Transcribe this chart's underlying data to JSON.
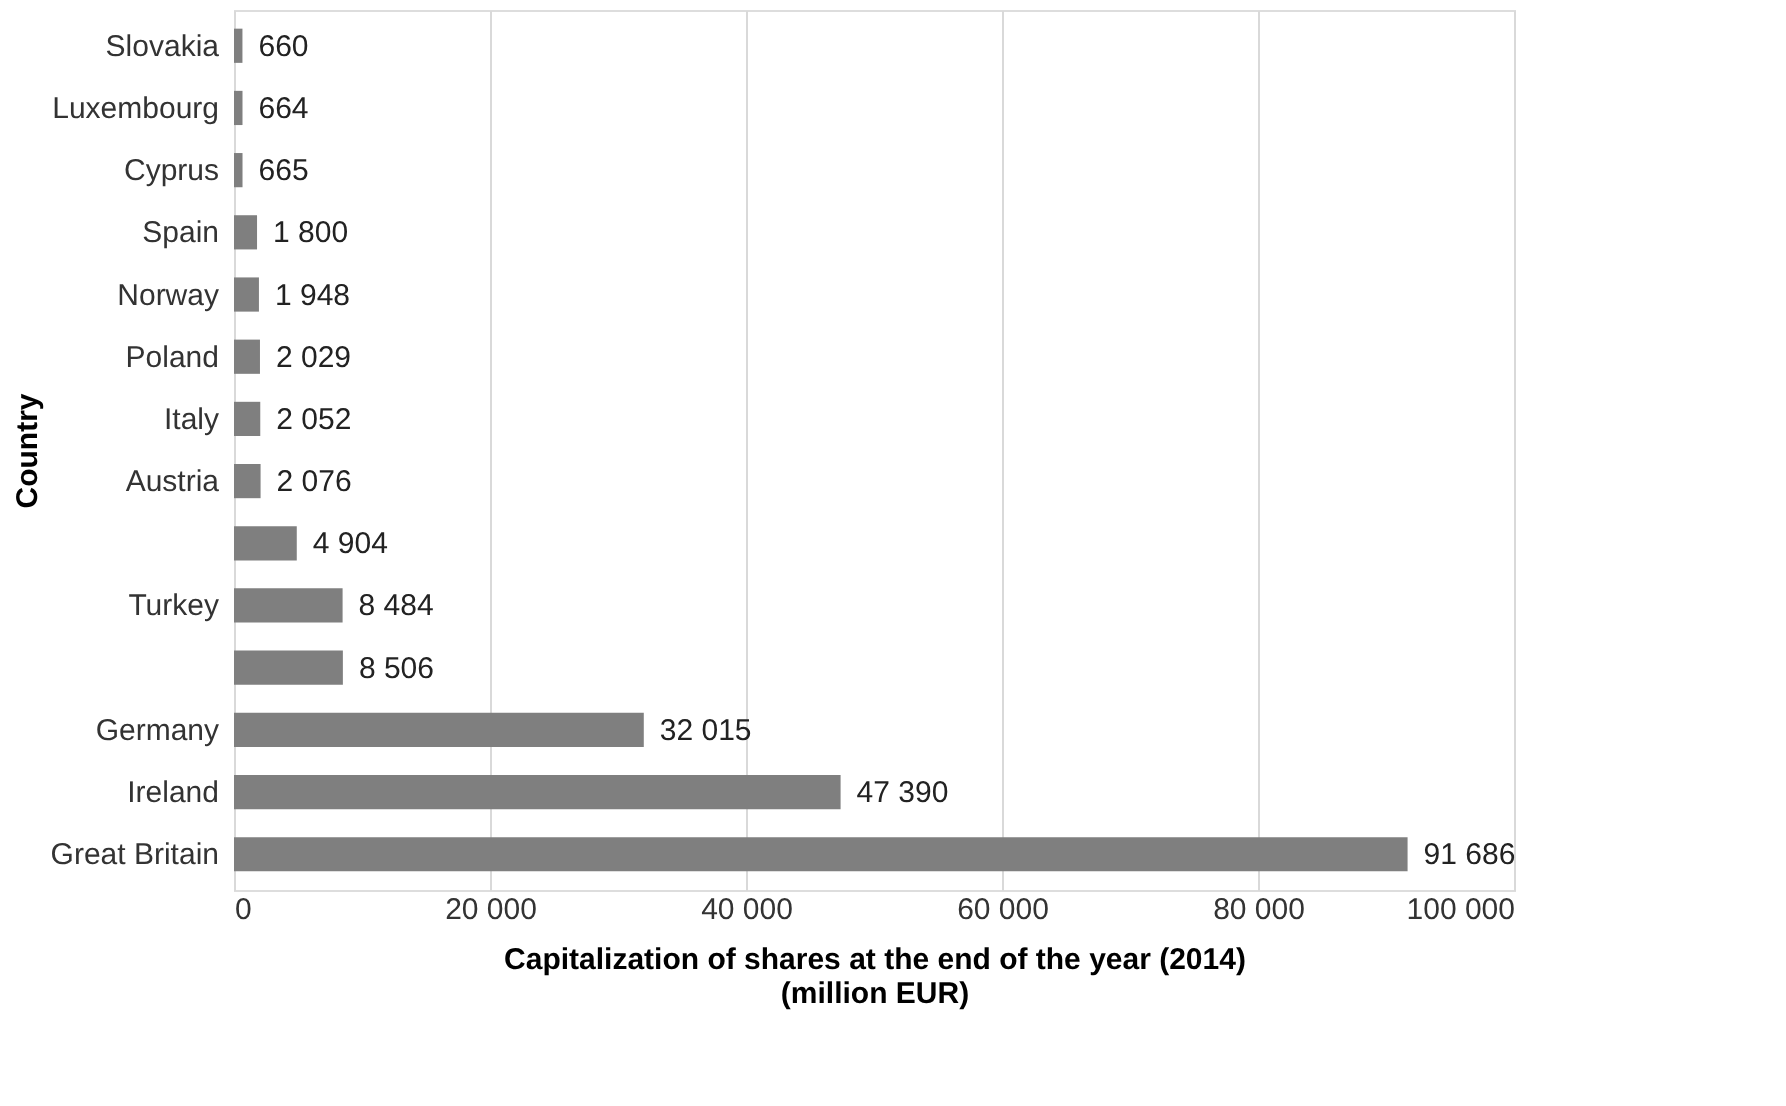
{
  "chart_data": {
    "type": "bar",
    "orientation": "horizontal",
    "ylabel": "Country",
    "xlabel": "Capitalization of shares at the end of the year (2014)\n(million EUR)",
    "categories": [
      "Slovakia",
      "Luxembourg",
      "Cyprus",
      "Spain",
      "Norway",
      "Poland",
      "Italy",
      "Austria",
      null,
      "Turkey",
      null,
      "Germany",
      "Ireland",
      "Great Britain"
    ],
    "values": [
      660,
      664,
      665,
      1800,
      1948,
      2029,
      2052,
      2076,
      4904,
      8484,
      8506,
      32015,
      47390,
      91686
    ],
    "value_labels": [
      "660",
      "664",
      "665",
      "1 800",
      "1 948",
      "2 029",
      "2 052",
      "2 076",
      "4 904",
      "8 484",
      "8 506",
      "32 015",
      "47 390",
      "91 686"
    ],
    "color": "#7f7f7f",
    "xlim": [
      0,
      100000
    ],
    "xticks": [
      0,
      {
        "value": 20000,
        "label": "20 000"
      },
      {
        "value": 40000,
        "label": "40 000"
      },
      {
        "value": 60000,
        "label": "60 000"
      },
      {
        "value": 80000,
        "label": "80 000"
      },
      {
        "value": 100000,
        "label": "100 000"
      }
    ],
    "grid": "x"
  }
}
